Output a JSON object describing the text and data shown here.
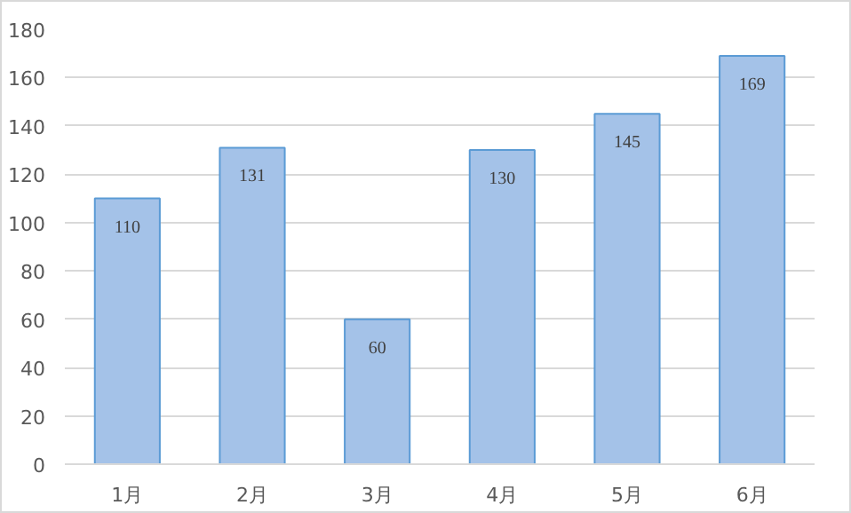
{
  "chart_data": {
    "type": "bar",
    "categories": [
      "1月",
      "2月",
      "3月",
      "4月",
      "5月",
      "6月"
    ],
    "values": [
      110,
      131,
      60,
      130,
      145,
      169
    ],
    "color": "#a4c2e8",
    "ylim": [
      0,
      180
    ],
    "yticks": [
      0,
      20,
      40,
      60,
      80,
      100,
      120,
      140,
      160,
      180
    ],
    "grid": "y",
    "data_labels": true
  }
}
